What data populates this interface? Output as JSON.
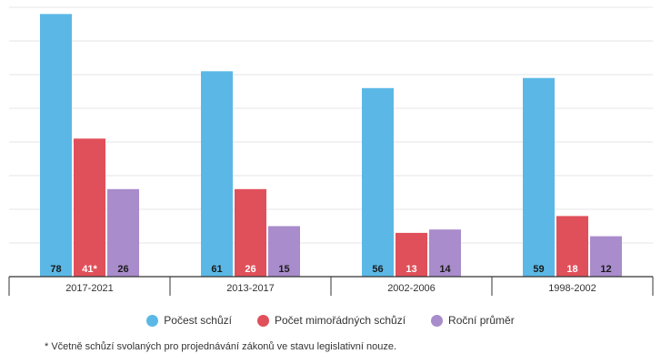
{
  "chart_data": {
    "type": "bar",
    "categories": [
      "2017-2021",
      "2013-2017",
      "2002-2006",
      "1998-2002"
    ],
    "series": [
      {
        "name": "Počest schůzí",
        "color": "#5bb8e6",
        "values": [
          78,
          61,
          56,
          59
        ],
        "labels": [
          "78",
          "61",
          "56",
          "59"
        ]
      },
      {
        "name": "Počet mimořádných schůzí",
        "color": "#e0505a",
        "values": [
          41,
          26,
          13,
          18
        ],
        "labels": [
          "41*",
          "26",
          "13",
          "18"
        ]
      },
      {
        "name": "Roční průměr",
        "color": "#a98ccb",
        "values": [
          26,
          15,
          14,
          12
        ],
        "labels": [
          "26",
          "15",
          "14",
          "12"
        ]
      }
    ],
    "ylim": [
      0,
      80
    ],
    "grid": true,
    "legend_position": "bottom-center"
  },
  "footnote": "* Včetně schůzí svolaných pro projednávání zákonů ve stavu legislativní nouze."
}
